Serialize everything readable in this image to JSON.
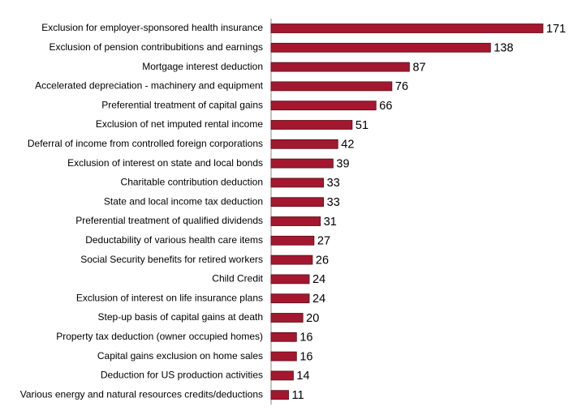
{
  "chart_data": {
    "type": "bar",
    "orientation": "horizontal",
    "color": "#a3182f",
    "categories": [
      "Exclusion for employer-sponsored health insurance",
      "Exclusion of pension contribubitions and earnings",
      "Mortgage interest deduction",
      "Accelerated depreciation - machinery and equipment",
      "Preferential treatment of capital gains",
      "Exclusion of net imputed rental income",
      "Deferral of income from controlled foreign corporations",
      "Exclusion of interest on state and local bonds",
      "Charitable contribution deduction",
      "State and local income tax deduction",
      "Preferential treatment of qualified dividends",
      "Deductability of various health care items",
      "Social Security benefits for retired workers",
      "Child Credit",
      "Exclusion of interest on life insurance plans",
      "Step-up basis of capital gains at death",
      "Property tax deduction (owner occupied homes)",
      "Capital gains exclusion on home sales",
      "Deduction for US production activities",
      "Various energy and natural resources credits/deductions"
    ],
    "values": [
      171,
      138,
      87,
      76,
      66,
      51,
      42,
      39,
      33,
      33,
      31,
      27,
      26,
      24,
      24,
      20,
      16,
      16,
      14,
      11
    ]
  }
}
